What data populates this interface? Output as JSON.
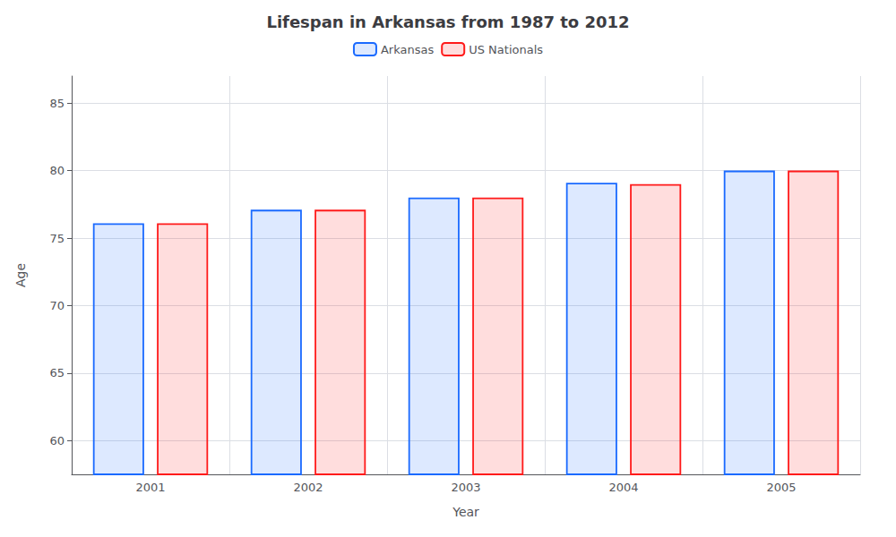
{
  "chart_data": {
    "type": "bar",
    "title": "Lifespan in Arkansas from 1987 to 2012",
    "xlabel": "Year",
    "ylabel": "Age",
    "categories": [
      "2001",
      "2002",
      "2003",
      "2004",
      "2005"
    ],
    "series": [
      {
        "name": "Arkansas",
        "color": "#1a6aff",
        "values": [
          76.1,
          77.1,
          78.0,
          79.1,
          80.0
        ]
      },
      {
        "name": "US Nationals",
        "color": "#ff1a1a",
        "values": [
          76.1,
          77.1,
          78.0,
          79.0,
          80.0
        ]
      }
    ],
    "ylim": [
      57.5,
      87
    ],
    "yticks": [
      60,
      65,
      70,
      75,
      80,
      85
    ],
    "grid": true,
    "legend": "top"
  }
}
